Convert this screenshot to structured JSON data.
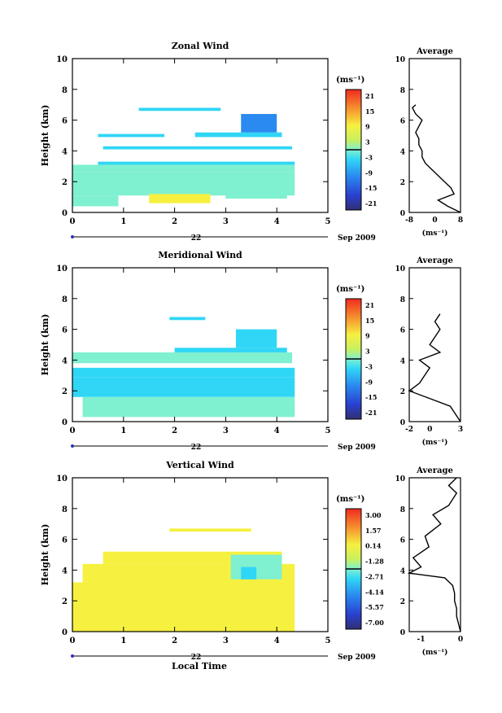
{
  "common": {
    "date_label": "Sep 2009",
    "day_label": "22",
    "bottom_xlabel": "Local Time",
    "unit_label": "(ms⁻¹)",
    "avg_title": "Average",
    "ylabel": "Height (km)"
  },
  "chart_data": [
    {
      "type": "heatmap",
      "title": "Zonal Wind",
      "ylabel": "Height (km)",
      "xlim": [
        0,
        5
      ],
      "ylim": [
        0,
        10
      ],
      "x_ticks": [
        "0",
        "1",
        "2",
        "3",
        "4",
        "5"
      ],
      "y_ticks": [
        "0",
        "2",
        "4",
        "6",
        "8",
        "10"
      ],
      "colorbar": {
        "unit": "(ms⁻¹)",
        "ticks": [
          "21",
          "15",
          "9",
          "3",
          "-3",
          "-9",
          "-15",
          "-21"
        ]
      },
      "cells": [
        {
          "x": [
            0,
            4.35
          ],
          "y": [
            1.1,
            2.6
          ],
          "v": 1.5
        },
        {
          "x": [
            0,
            4.35
          ],
          "y": [
            2.6,
            3.1
          ],
          "v": -2
        },
        {
          "x": [
            0.5,
            4.35
          ],
          "y": [
            3.1,
            3.3
          ],
          "v": -3
        },
        {
          "x": [
            0.6,
            4.3
          ],
          "y": [
            4.1,
            4.3
          ],
          "v": -4
        },
        {
          "x": [
            0.5,
            1.8
          ],
          "y": [
            4.9,
            5.1
          ],
          "v": -6
        },
        {
          "x": [
            2.4,
            4.1
          ],
          "y": [
            4.9,
            5.2
          ],
          "v": -5
        },
        {
          "x": [
            3.3,
            4.0
          ],
          "y": [
            5.2,
            6.4
          ],
          "v": -9
        },
        {
          "x": [
            1.3,
            2.9
          ],
          "y": [
            6.6,
            6.8
          ],
          "v": -4
        },
        {
          "x": [
            0,
            0.9
          ],
          "y": [
            0.4,
            1.1
          ],
          "v": 2
        },
        {
          "x": [
            1.5,
            2.7
          ],
          "y": [
            0.6,
            1.2
          ],
          "v": 7
        },
        {
          "x": [
            3.0,
            4.2
          ],
          "y": [
            0.9,
            1.2
          ],
          "v": 2
        }
      ],
      "average": {
        "xlim": [
          -8,
          8
        ],
        "x_ticks": [
          "-8",
          "0",
          "8"
        ],
        "heights": [
          0,
          0.4,
          0.8,
          1.2,
          1.6,
          2.0,
          2.4,
          2.8,
          3.2,
          3.6,
          4.0,
          4.4,
          4.8,
          5.2,
          5.6,
          6.0,
          6.4,
          6.8,
          7.0
        ],
        "values": [
          8,
          4,
          1,
          6,
          5,
          3,
          1,
          -1,
          -3,
          -4,
          -4,
          -5,
          -5,
          -6,
          -5,
          -4,
          -6,
          -7,
          -6
        ]
      }
    },
    {
      "type": "heatmap",
      "title": "Meridional Wind",
      "ylabel": "Height (km)",
      "xlim": [
        0,
        5
      ],
      "ylim": [
        0,
        10
      ],
      "x_ticks": [
        "0",
        "1",
        "2",
        "3",
        "4",
        "5"
      ],
      "y_ticks": [
        "0",
        "2",
        "4",
        "6",
        "8",
        "10"
      ],
      "colorbar": {
        "unit": "(ms⁻¹)",
        "ticks": [
          "21",
          "15",
          "9",
          "3",
          "-3",
          "-9",
          "-15",
          "-21"
        ]
      },
      "cells": [
        {
          "x": [
            0,
            4.35
          ],
          "y": [
            1.6,
            2.9
          ],
          "v": -7
        },
        {
          "x": [
            0,
            4.35
          ],
          "y": [
            2.9,
            3.5
          ],
          "v": -4
        },
        {
          "x": [
            0.2,
            4.35
          ],
          "y": [
            0.3,
            1.6
          ],
          "v": 0
        },
        {
          "x": [
            0,
            4.3
          ],
          "y": [
            3.8,
            4.5
          ],
          "v": -2
        },
        {
          "x": [
            2.0,
            4.2
          ],
          "y": [
            4.5,
            4.8
          ],
          "v": -3
        },
        {
          "x": [
            3.2,
            4.0
          ],
          "y": [
            4.8,
            6.0
          ],
          "v": -4
        },
        {
          "x": [
            1.9,
            2.6
          ],
          "y": [
            6.6,
            6.8
          ],
          "v": -3
        }
      ],
      "average": {
        "xlim": [
          -2,
          3
        ],
        "x_ticks": [
          "-2",
          "0",
          "3"
        ],
        "heights": [
          0,
          0.5,
          1.0,
          1.5,
          2.0,
          2.5,
          3.0,
          3.5,
          4.0,
          4.5,
          5.0,
          5.5,
          6.0,
          6.5,
          7.0
        ],
        "values": [
          3,
          2.5,
          2,
          0,
          -2,
          -1,
          -0.5,
          0,
          -1,
          1,
          0,
          0.5,
          1,
          0.5,
          1
        ]
      }
    },
    {
      "type": "heatmap",
      "title": "Vertical Wind",
      "ylabel": "Height (km)",
      "xlim": [
        0,
        5
      ],
      "ylim": [
        0,
        10
      ],
      "x_ticks": [
        "0",
        "1",
        "2",
        "3",
        "4",
        "5"
      ],
      "y_ticks": [
        "0",
        "2",
        "4",
        "6",
        "8",
        "10"
      ],
      "colorbar": {
        "unit": "(ms⁻¹)",
        "ticks": [
          "3.00",
          "1.57",
          "0.14",
          "-1.28",
          "-2.71",
          "-4.14",
          "-5.57",
          "-7.00"
        ]
      },
      "cells": [
        {
          "x": [
            0,
            4.35
          ],
          "y": [
            0,
            3.2
          ],
          "v": 0.3
        },
        {
          "x": [
            0.2,
            4.35
          ],
          "y": [
            3.2,
            4.4
          ],
          "v": 0
        },
        {
          "x": [
            0.6,
            4.1
          ],
          "y": [
            4.4,
            5.2
          ],
          "v": 0.1
        },
        {
          "x": [
            3.1,
            4.1
          ],
          "y": [
            3.4,
            5.0
          ],
          "v": -1.5
        },
        {
          "x": [
            1.9,
            3.5
          ],
          "y": [
            6.5,
            6.7
          ],
          "v": 0.3
        },
        {
          "x": [
            3.3,
            3.6
          ],
          "y": [
            3.4,
            4.2
          ],
          "v": -3
        }
      ],
      "average": {
        "xlim": [
          -1.3,
          0
        ],
        "x_ticks": [
          "-1",
          "0"
        ],
        "heights": [
          0,
          0.5,
          1.0,
          1.5,
          2.0,
          2.5,
          3.0,
          3.5,
          3.8,
          4.2,
          4.8,
          5.5,
          6.2,
          7.0,
          7.6,
          8.2,
          9.0,
          9.5,
          10
        ],
        "values": [
          0,
          -0.05,
          -0.1,
          -0.1,
          -0.15,
          -0.15,
          -0.2,
          -0.4,
          -1.3,
          -1.0,
          -1.2,
          -0.8,
          -0.9,
          -0.5,
          -0.7,
          -0.3,
          -0.1,
          -0.3,
          -0.1
        ]
      }
    }
  ]
}
